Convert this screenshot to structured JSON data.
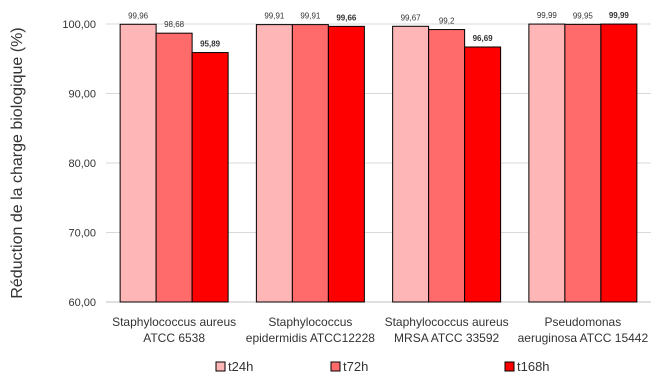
{
  "chart_data": {
    "type": "bar",
    "title": "",
    "xlabel": "",
    "ylabel": "Réduction de la charge biologique (%)",
    "ylim": [
      60,
      100
    ],
    "yticks": [
      "60,00",
      "70,00",
      "80,00",
      "90,00",
      "100,00"
    ],
    "ytick_values": [
      60,
      70,
      80,
      90,
      100
    ],
    "grid": true,
    "legend_position": "bottom",
    "categories": [
      [
        "Staphylococcus aureus",
        "ATCC 6538"
      ],
      [
        "Staphylococcus",
        "epidermidis ATCC12228"
      ],
      [
        "Staphylococcus aureus",
        "MRSA ATCC 33592"
      ],
      [
        "Pseudomonas",
        "aeruginosa ATCC 15442"
      ]
    ],
    "series": [
      {
        "name": "t24h",
        "color": "#ffb6b6",
        "values": [
          99.96,
          99.91,
          99.67,
          99.99
        ],
        "labels": [
          "99,96",
          "99,91",
          "99,67",
          "99,99"
        ]
      },
      {
        "name": "t72h",
        "color": "#ff6b6b",
        "values": [
          98.68,
          99.91,
          99.2,
          99.95
        ],
        "labels": [
          "98,68",
          "99,91",
          "99,2",
          "99,95"
        ]
      },
      {
        "name": "t168h",
        "color": "#ff0000",
        "values": [
          95.89,
          99.66,
          96.69,
          99.99
        ],
        "labels": [
          "95,89",
          "99,66",
          "96,69",
          "99,99"
        ],
        "bold_labels": true
      }
    ]
  }
}
